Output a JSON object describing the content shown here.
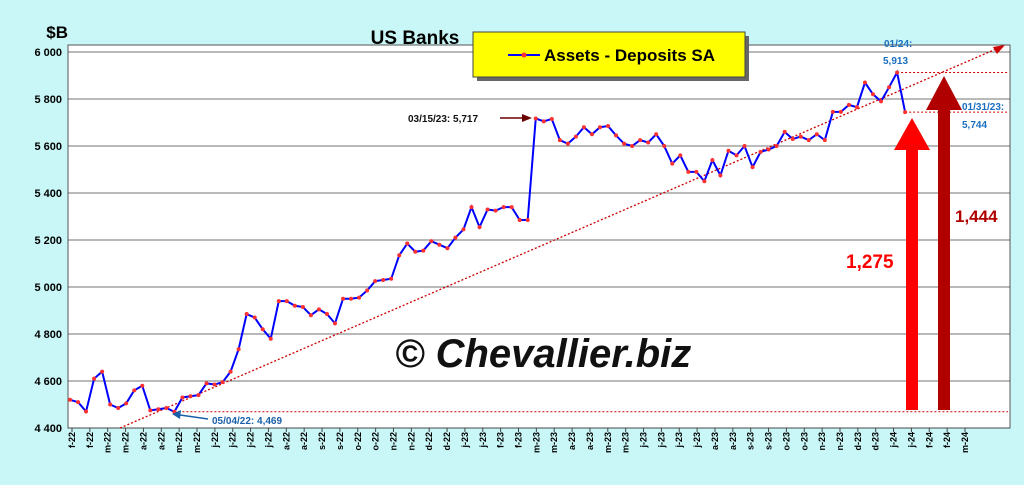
{
  "chart_data": {
    "type": "line",
    "title": "US Banks",
    "y_axis_label": "$B",
    "watermark": "© Chevallier.biz",
    "categories": [
      null,
      null,
      null,
      null,
      null,
      null,
      null,
      null,
      null,
      null,
      null,
      null,
      null,
      null,
      null,
      null,
      null,
      null,
      null,
      null,
      null,
      null,
      null,
      null,
      null,
      null,
      null,
      null,
      null,
      null,
      null,
      null,
      null,
      null,
      null,
      null,
      null,
      null,
      null,
      null,
      null,
      null,
      null,
      null,
      null,
      null,
      null,
      null,
      null,
      null,
      null,
      null,
      null,
      null,
      null,
      null,
      null,
      null,
      null,
      null,
      null,
      null,
      null,
      null,
      null,
      null,
      null,
      null,
      null,
      null,
      null,
      null,
      null,
      null,
      null,
      null,
      null,
      null,
      null,
      null,
      null,
      null,
      null,
      null,
      null,
      null,
      null,
      null,
      null,
      null,
      null,
      null,
      null,
      null,
      null,
      null,
      null,
      null,
      null,
      null,
      null,
      null,
      null,
      null,
      null
    ],
    "x_axis_labels": [
      "f-22",
      "f-22",
      "m-22",
      "m-22",
      "a-22",
      "a-22",
      "m-22",
      "m-22",
      "j-22",
      "j-22",
      "j-22",
      "j-22",
      "a-22",
      "a-22",
      "s-22",
      "s-22",
      "o-22",
      "o-22",
      "n-22",
      "n-22",
      "d-22",
      "d-22",
      "j-23",
      "j-23",
      "f-23",
      "f-23",
      "m-23",
      "m-23",
      "a-23",
      "a-23",
      "m-23",
      "m-23",
      "j-23",
      "j-23",
      "j-23",
      "j-23",
      "a-23",
      "a-23",
      "s-23",
      "s-23",
      "o-23",
      "o-23",
      "n-23",
      "n-23",
      "d-23",
      "d-23",
      "j-24",
      "j-24",
      "f-24",
      "f-24",
      "m-24"
    ],
    "series": [
      {
        "name": "Assets - Deposits SA",
        "color": "#0000ff",
        "marker_color": "#ff3030",
        "values": [
          4520,
          4510,
          4470,
          4610,
          4640,
          4500,
          4485,
          4505,
          4560,
          4580,
          4475,
          4480,
          4485,
          4469,
          4530,
          4535,
          4540,
          4590,
          4585,
          4595,
          4640,
          4735,
          4885,
          4870,
          4820,
          4780,
          4940,
          4940,
          4920,
          4915,
          4880,
          4905,
          4885,
          4845,
          4950,
          4950,
          4955,
          4985,
          5025,
          5030,
          5035,
          5135,
          5185,
          5150,
          5155,
          5195,
          5180,
          5165,
          5210,
          5245,
          5340,
          5255,
          5330,
          5325,
          5340,
          5340,
          5285,
          5285,
          5717,
          5705,
          5715,
          5625,
          5610,
          5640,
          5680,
          5650,
          5680,
          5685,
          5645,
          5610,
          5600,
          5625,
          5615,
          5650,
          5600,
          5525,
          5560,
          5490,
          5490,
          5450,
          5540,
          5475,
          5580,
          5560,
          5600,
          5510,
          5575,
          5585,
          5600,
          5660,
          5630,
          5640,
          5625,
          5650,
          5625,
          5745,
          5745,
          5775,
          5765,
          5870,
          5820,
          5790,
          5850,
          5913,
          5744
        ]
      }
    ],
    "ylim": [
      4400,
      6000
    ],
    "yticks": [
      {
        "value": 4400,
        "label": "4 400"
      },
      {
        "value": 4600,
        "label": "4 600"
      },
      {
        "value": 4800,
        "label": "4 800"
      },
      {
        "value": 5000,
        "label": "5 000"
      },
      {
        "value": 5200,
        "label": "5 200"
      },
      {
        "value": 5400,
        "label": "5 400"
      },
      {
        "value": 5600,
        "label": "5 600"
      },
      {
        "value": 5800,
        "label": "5 800"
      },
      {
        "value": 6000,
        "label": "6 000"
      }
    ],
    "grid": true,
    "annotations": [
      "03/15/23: 5,717",
      "05/04/22: 4,469",
      "01/24:",
      "5,913",
      "01/31/23:",
      "5,744",
      "1,275",
      "1,444"
    ]
  }
}
